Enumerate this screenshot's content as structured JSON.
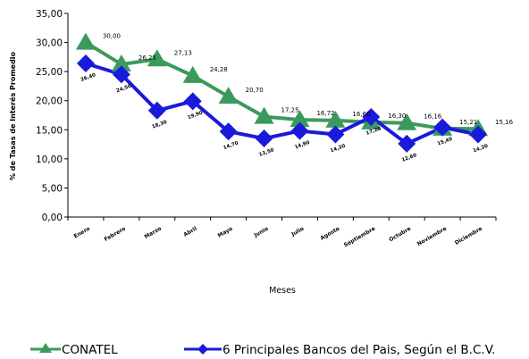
{
  "chart_data": {
    "type": "line",
    "ylabel": "% de Tasas de Interés Promedio",
    "xlabel": "Meses",
    "ylim": [
      0,
      35
    ],
    "yticks": [
      "0,00",
      "5,00",
      "10,00",
      "15,00",
      "20,00",
      "25,00",
      "30,00",
      "35,00"
    ],
    "categories": [
      "Enero",
      "Febrero",
      "Marzo",
      "Abril",
      "Mayo",
      "Junio",
      "Julio",
      "Agosto",
      "Septiembre",
      "Octubre",
      "Noviembre",
      "Diciembre"
    ],
    "series": [
      {
        "name": "CONATEL",
        "color": "#3a9a5c",
        "marker": "triangle",
        "values": [
          30.0,
          26.25,
          27.13,
          24.28,
          20.7,
          17.25,
          16.72,
          16.6,
          16.3,
          16.16,
          15.21,
          15.16
        ],
        "labels": [
          "30,00",
          "26,25",
          "27,13",
          "24,28",
          "20,70",
          "17,25",
          "16,72",
          "16,60",
          "16,30",
          "16,16",
          "15,21",
          "15,16"
        ]
      },
      {
        "name": "6 Principales Bancos del Pais, Según el B.C.V.",
        "color": "#1a1adc",
        "marker": "diamond",
        "values": [
          26.4,
          24.5,
          18.3,
          19.9,
          14.7,
          13.5,
          14.8,
          14.2,
          17.2,
          12.6,
          15.4,
          14.2
        ],
        "labels": [
          "26,40",
          "24,50",
          "18,30",
          "19,90",
          "14,70",
          "13,50",
          "14,80",
          "14,20",
          "17,20",
          "12,60",
          "15,40",
          "14,20"
        ]
      }
    ],
    "legend": "bottom"
  }
}
